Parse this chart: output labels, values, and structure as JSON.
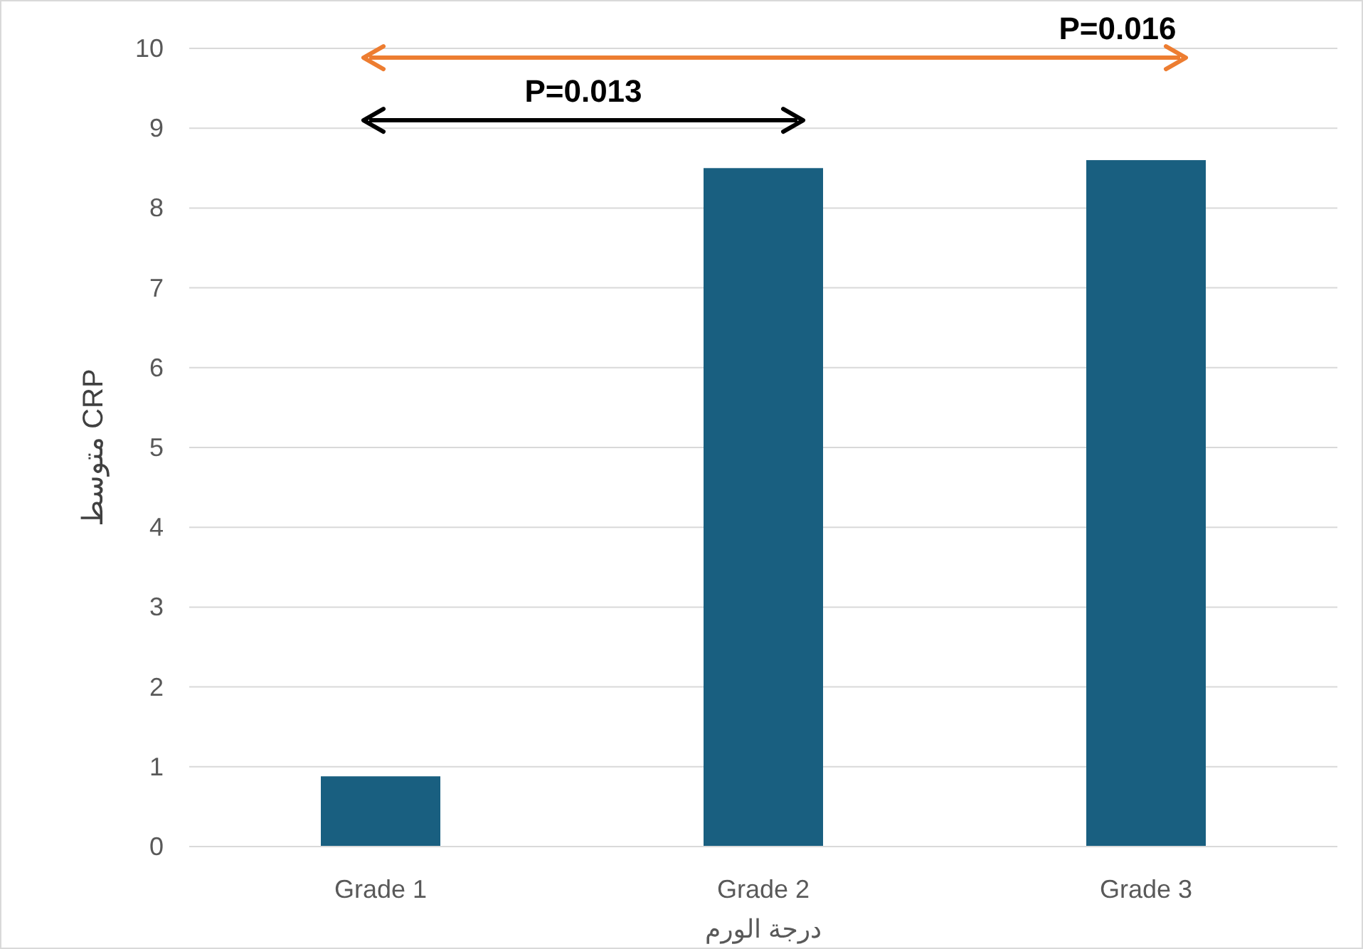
{
  "chart_data": {
    "type": "bar",
    "categories": [
      "Grade 1",
      "Grade 2",
      "Grade 3"
    ],
    "values": [
      0.88,
      8.5,
      8.6
    ],
    "color": "#195f80",
    "xlabel": "درجة الورم",
    "ylabel": "متوسط CRP",
    "ylim": [
      0,
      10
    ],
    "yticks": [
      0,
      1,
      2,
      3,
      4,
      5,
      6,
      7,
      8,
      9,
      10
    ],
    "grid": "y",
    "annotations": [
      "P=0.013",
      "P=0.016"
    ]
  }
}
